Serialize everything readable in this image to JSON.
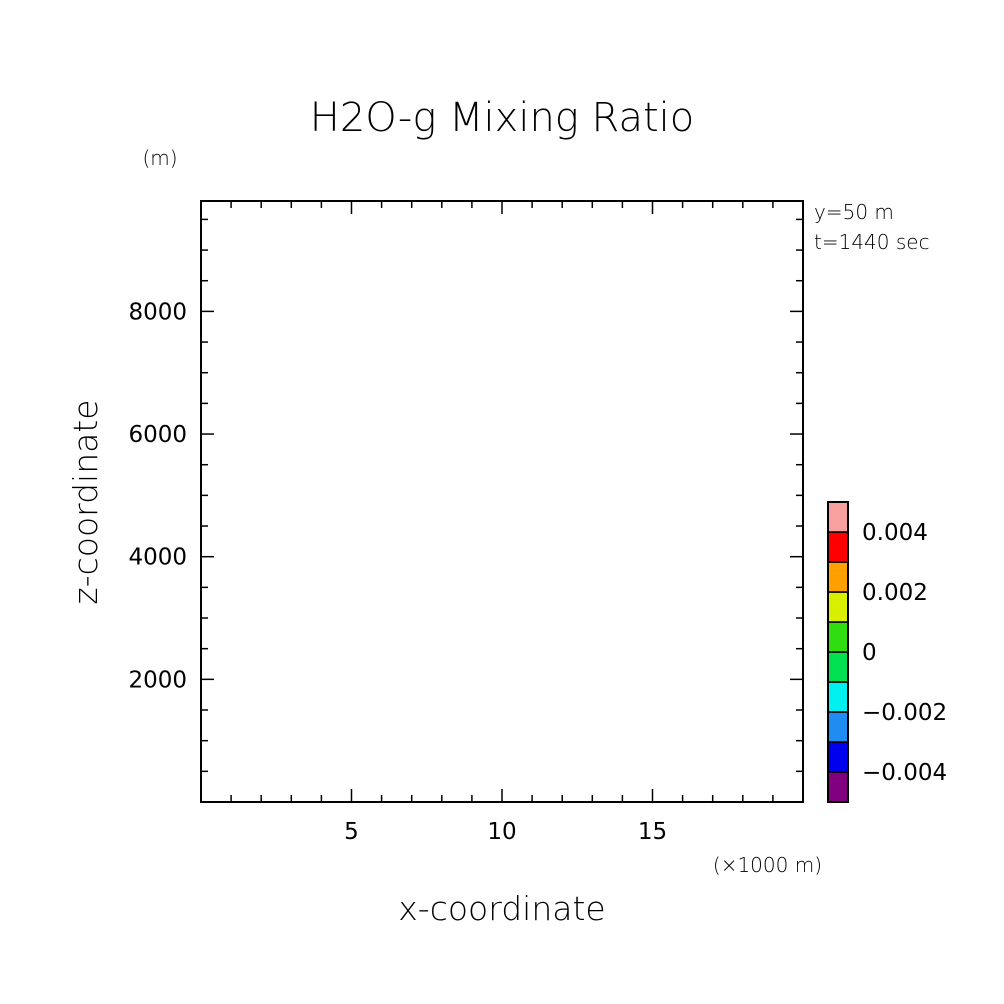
{
  "chart_data": {
    "type": "heatmap",
    "title": "H2O-g Mixing Ratio",
    "xlabel": "x-coordinate",
    "ylabel": "z-coordinate",
    "x_unit": "(×1000 m)",
    "y_unit": "(m)",
    "annotations": [
      "y=50 m",
      "t=1440 sec"
    ],
    "xlim": [
      0,
      20
    ],
    "ylim": [
      0,
      9800
    ],
    "x_ticks": [
      5,
      10,
      15
    ],
    "x_tick_labels": [
      "5",
      "10",
      "15"
    ],
    "x_minor_step": 1,
    "y_ticks": [
      2000,
      4000,
      6000,
      8000
    ],
    "y_tick_labels": [
      "2000",
      "4000",
      "6000",
      "8000"
    ],
    "y_minor_step": 500,
    "values": [],
    "grid": false,
    "colorbar": {
      "levels": [
        -0.005,
        -0.004,
        -0.003,
        -0.002,
        -0.001,
        0,
        0.001,
        0.002,
        0.003,
        0.004,
        0.005
      ],
      "colors": [
        "#800080",
        "#0000ee",
        "#1e8cf0",
        "#00f0f0",
        "#00e050",
        "#30dd10",
        "#d8f000",
        "#ffa000",
        "#ff0000",
        "#f8a0a0"
      ],
      "tick_values": [
        -0.004,
        -0.002,
        0,
        0.002,
        0.004
      ],
      "tick_labels": [
        "−0.004",
        "−0.002",
        "0",
        "0.002",
        "0.004"
      ]
    }
  }
}
